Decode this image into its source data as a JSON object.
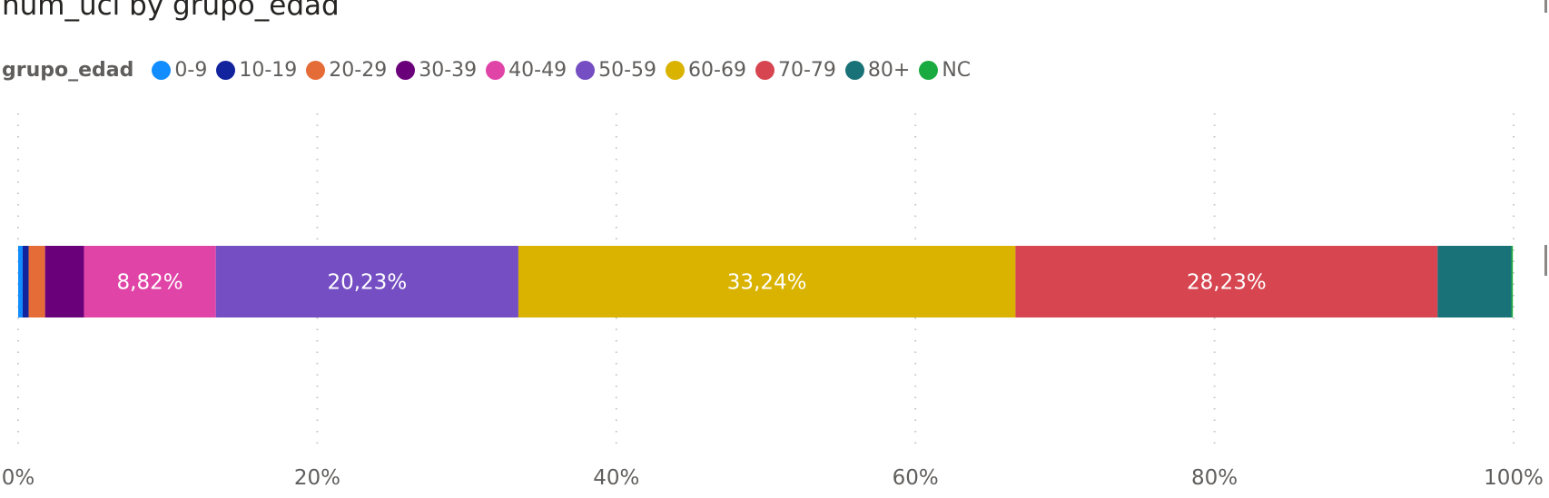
{
  "chart_data": {
    "type": "bar",
    "orientation": "horizontal",
    "stacked": "percent",
    "title": "num_uci by grupo_edad",
    "legend_title": "grupo_edad",
    "legend_position": "top-left",
    "xlabel": "",
    "ylabel": "",
    "xlim": [
      0,
      100
    ],
    "x_ticks": [
      "0%",
      "20%",
      "40%",
      "60%",
      "80%",
      "100%"
    ],
    "x_tick_values": [
      0,
      20,
      40,
      60,
      80,
      100
    ],
    "grid": true,
    "series": [
      {
        "name": "0-9",
        "value": 0.3,
        "color": "#118dff",
        "label": ""
      },
      {
        "name": "10-19",
        "value": 0.4,
        "color": "#12239e",
        "label": ""
      },
      {
        "name": "20-29",
        "value": 1.1,
        "color": "#e66c37",
        "label": ""
      },
      {
        "name": "30-39",
        "value": 2.6,
        "color": "#6b007b",
        "label": ""
      },
      {
        "name": "40-49",
        "value": 8.82,
        "color": "#e044a7",
        "label": "8,82%"
      },
      {
        "name": "50-59",
        "value": 20.23,
        "color": "#744ec2",
        "label": "20,23%"
      },
      {
        "name": "60-69",
        "value": 33.24,
        "color": "#d9b300",
        "label": "33,24%"
      },
      {
        "name": "70-79",
        "value": 28.23,
        "color": "#d64550",
        "label": "28,23%"
      },
      {
        "name": "80+",
        "value": 4.93,
        "color": "#197278",
        "label": ""
      },
      {
        "name": "NC",
        "value": 0.1,
        "color": "#1aab40",
        "label": ""
      }
    ]
  }
}
